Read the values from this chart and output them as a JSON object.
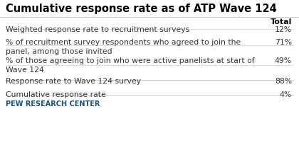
{
  "title": "Cumulative response rate as of ATP Wave 124",
  "header": "Total",
  "rows": [
    {
      "label": "Weighted response rate to recruitment surveys",
      "value": "12%",
      "two_line": false,
      "bold": false
    },
    {
      "label": "% of recruitment survey respondents who agreed to join the\npanel, among those invited",
      "value": "71%",
      "two_line": true,
      "bold": false
    },
    {
      "label": "% of those agreeing to join who were active panelists at start of\nWave 124",
      "value": "49%",
      "two_line": true,
      "bold": false
    },
    {
      "label": "Response rate to Wave 124 survey",
      "value": "88%",
      "two_line": false,
      "bold": false
    },
    {
      "label": "Cumulative response rate",
      "value": "4%",
      "two_line": false,
      "bold": false
    }
  ],
  "footer": "PEW RESEARCH CENTER",
  "bg_color": "#ffffff",
  "title_color": "#000000",
  "text_color": "#333333",
  "header_color": "#000000",
  "separator_color": "#cccccc",
  "footer_color": "#1a5276",
  "title_fontsize": 10.5,
  "body_fontsize": 7.8,
  "header_fontsize": 8.0,
  "footer_fontsize": 7.0
}
